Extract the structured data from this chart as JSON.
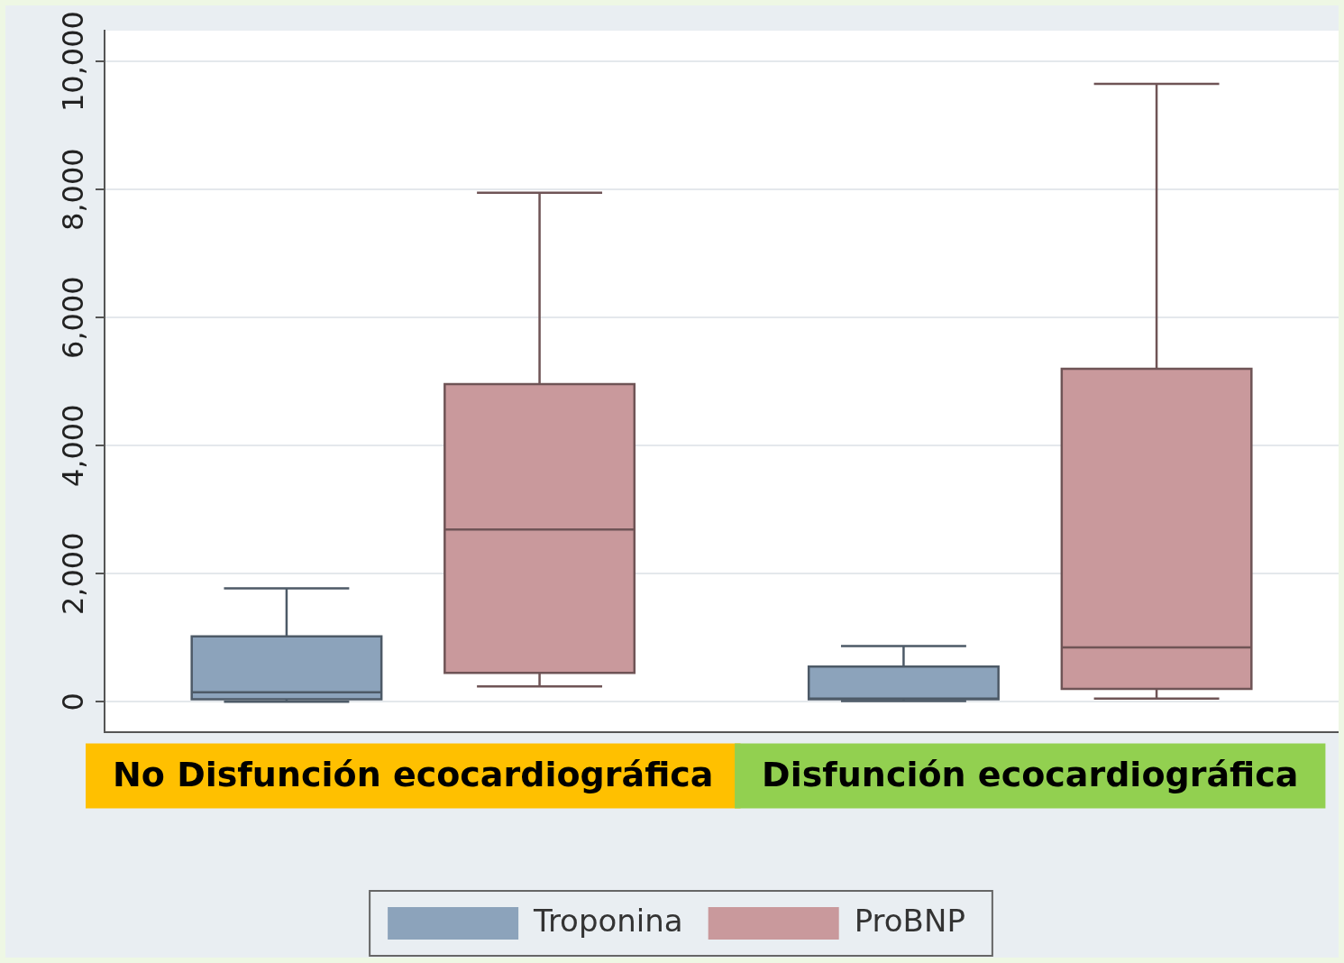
{
  "chart_data": {
    "type": "box",
    "categories": [
      "No Disfunción ecocardiográfica",
      "Disfunción ecocardiográfica"
    ],
    "ylim": [
      -480,
      10480
    ],
    "yticks": [
      {
        "value": 0,
        "label": "0"
      },
      {
        "value": 2000,
        "label": "2,000"
      },
      {
        "value": 4000,
        "label": "4,000"
      },
      {
        "value": 6000,
        "label": "6,000"
      },
      {
        "value": 8000,
        "label": "8,000"
      },
      {
        "value": 10000,
        "label": "10,000"
      }
    ],
    "grid": "y",
    "legend": "bottom",
    "series": [
      {
        "name": "Troponina",
        "color": "#8ca3bb",
        "boxes": [
          {
            "low": 0,
            "q1": 40,
            "median": 150,
            "q3": 1020,
            "high": 1770
          },
          {
            "low": 10,
            "q1": 40,
            "median": 50,
            "q3": 550,
            "high": 870
          }
        ]
      },
      {
        "name": "ProBNP",
        "color": "#c9999c",
        "boxes": [
          {
            "low": 240,
            "q1": 450,
            "median": 2690,
            "q3": 4960,
            "high": 7950
          },
          {
            "low": 50,
            "q1": 200,
            "median": 850,
            "q3": 5200,
            "high": 9650
          }
        ]
      }
    ]
  }
}
